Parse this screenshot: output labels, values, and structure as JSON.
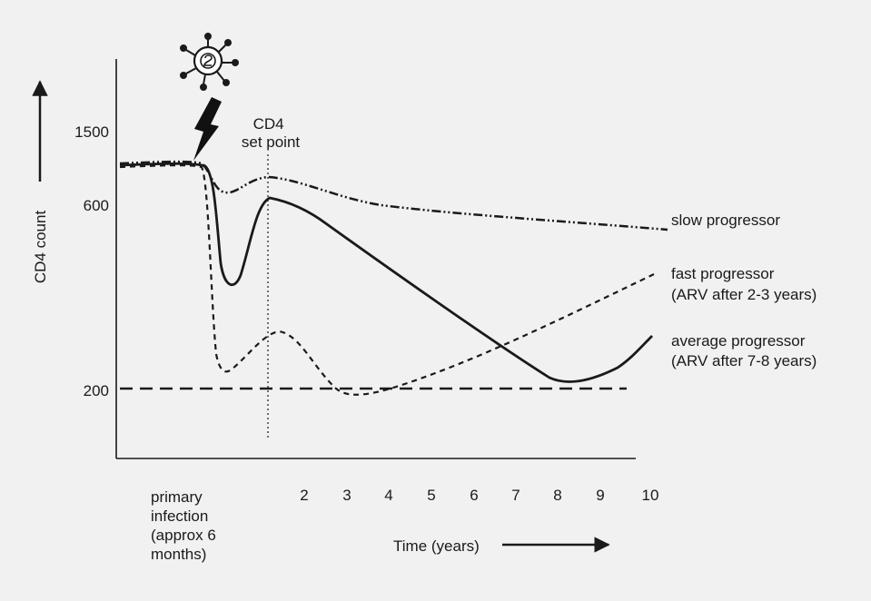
{
  "chart_data": {
    "type": "line",
    "title": "",
    "xlabel": "Time (years)",
    "ylabel": "CD4 count",
    "x_ticks": [
      "2",
      "3",
      "4",
      "5",
      "6",
      "7",
      "8",
      "9",
      "10"
    ],
    "primary_label": [
      "primary",
      "infection",
      "(approx 6",
      "months)"
    ],
    "y_ticks": [
      "200",
      "600",
      "1500"
    ],
    "annotation": [
      "CD4",
      "set point"
    ],
    "virus_symbol": "virus-icon",
    "lightning_symbol": "lightning-icon",
    "series": [
      {
        "key": "slow",
        "label": [
          "slow progressor"
        ]
      },
      {
        "key": "fast",
        "label": [
          "fast progressor",
          "(ARV after 2-3 years)"
        ]
      },
      {
        "key": "average",
        "label": [
          "average progressor",
          "(ARV after 7-8 years)"
        ]
      }
    ],
    "threshold": 200
  }
}
